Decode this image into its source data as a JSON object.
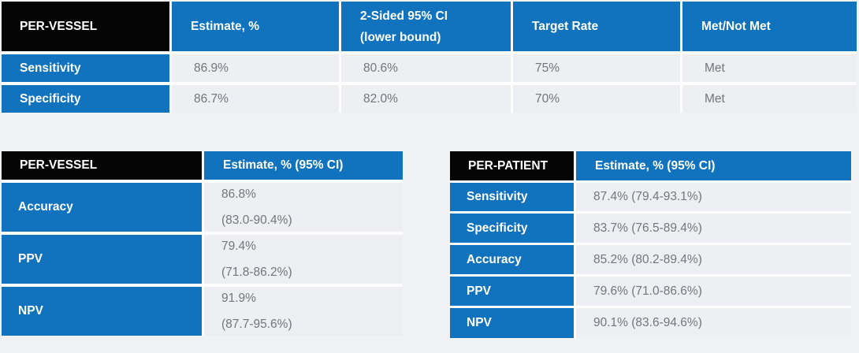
{
  "colors": {
    "accent_blue": "#1173bd",
    "header_black": "#050505",
    "data_cell_bg": "#edeff2",
    "data_text": "#73767e",
    "page_bg": "#f0f2f4",
    "separator": "#fdfdfd"
  },
  "top_table": {
    "title": "PER-VESSEL",
    "columns": {
      "estimate": "Estimate, %",
      "ci_lower": "2-Sided 95% CI\n(lower bound)",
      "target_rate": "Target Rate",
      "met": "Met/Not Met"
    },
    "rows": [
      {
        "label": "Sensitivity",
        "estimate": "86.9%",
        "ci_lower": "80.6%",
        "target_rate": "75%",
        "met": "Met"
      },
      {
        "label": "Specificity",
        "estimate": "86.7%",
        "ci_lower": "82.0%",
        "target_rate": "70%",
        "met": "Met"
      }
    ]
  },
  "per_vessel_table": {
    "title": "PER-VESSEL",
    "column": "Estimate, % (95% CI)",
    "rows": [
      {
        "label": "Accuracy",
        "value": "86.8%\n(83.0-90.4%)"
      },
      {
        "label": "PPV",
        "value": "79.4%\n(71.8-86.2%)"
      },
      {
        "label": "NPV",
        "value": "91.9%\n(87.7-95.6%)"
      }
    ]
  },
  "per_patient_table": {
    "title": "PER-PATIENT",
    "column": "Estimate, % (95% CI)",
    "rows": [
      {
        "label": "Sensitivity",
        "value": "87.4% (79.4-93.1%)"
      },
      {
        "label": "Specificity",
        "value": "83.7% (76.5-89.4%)"
      },
      {
        "label": "Accuracy",
        "value": "85.2% (80.2-89.4%)"
      },
      {
        "label": "PPV",
        "value": "79.6% (71.0-86.6%)"
      },
      {
        "label": "NPV",
        "value": "90.1% (83.6-94.6%)"
      }
    ]
  }
}
